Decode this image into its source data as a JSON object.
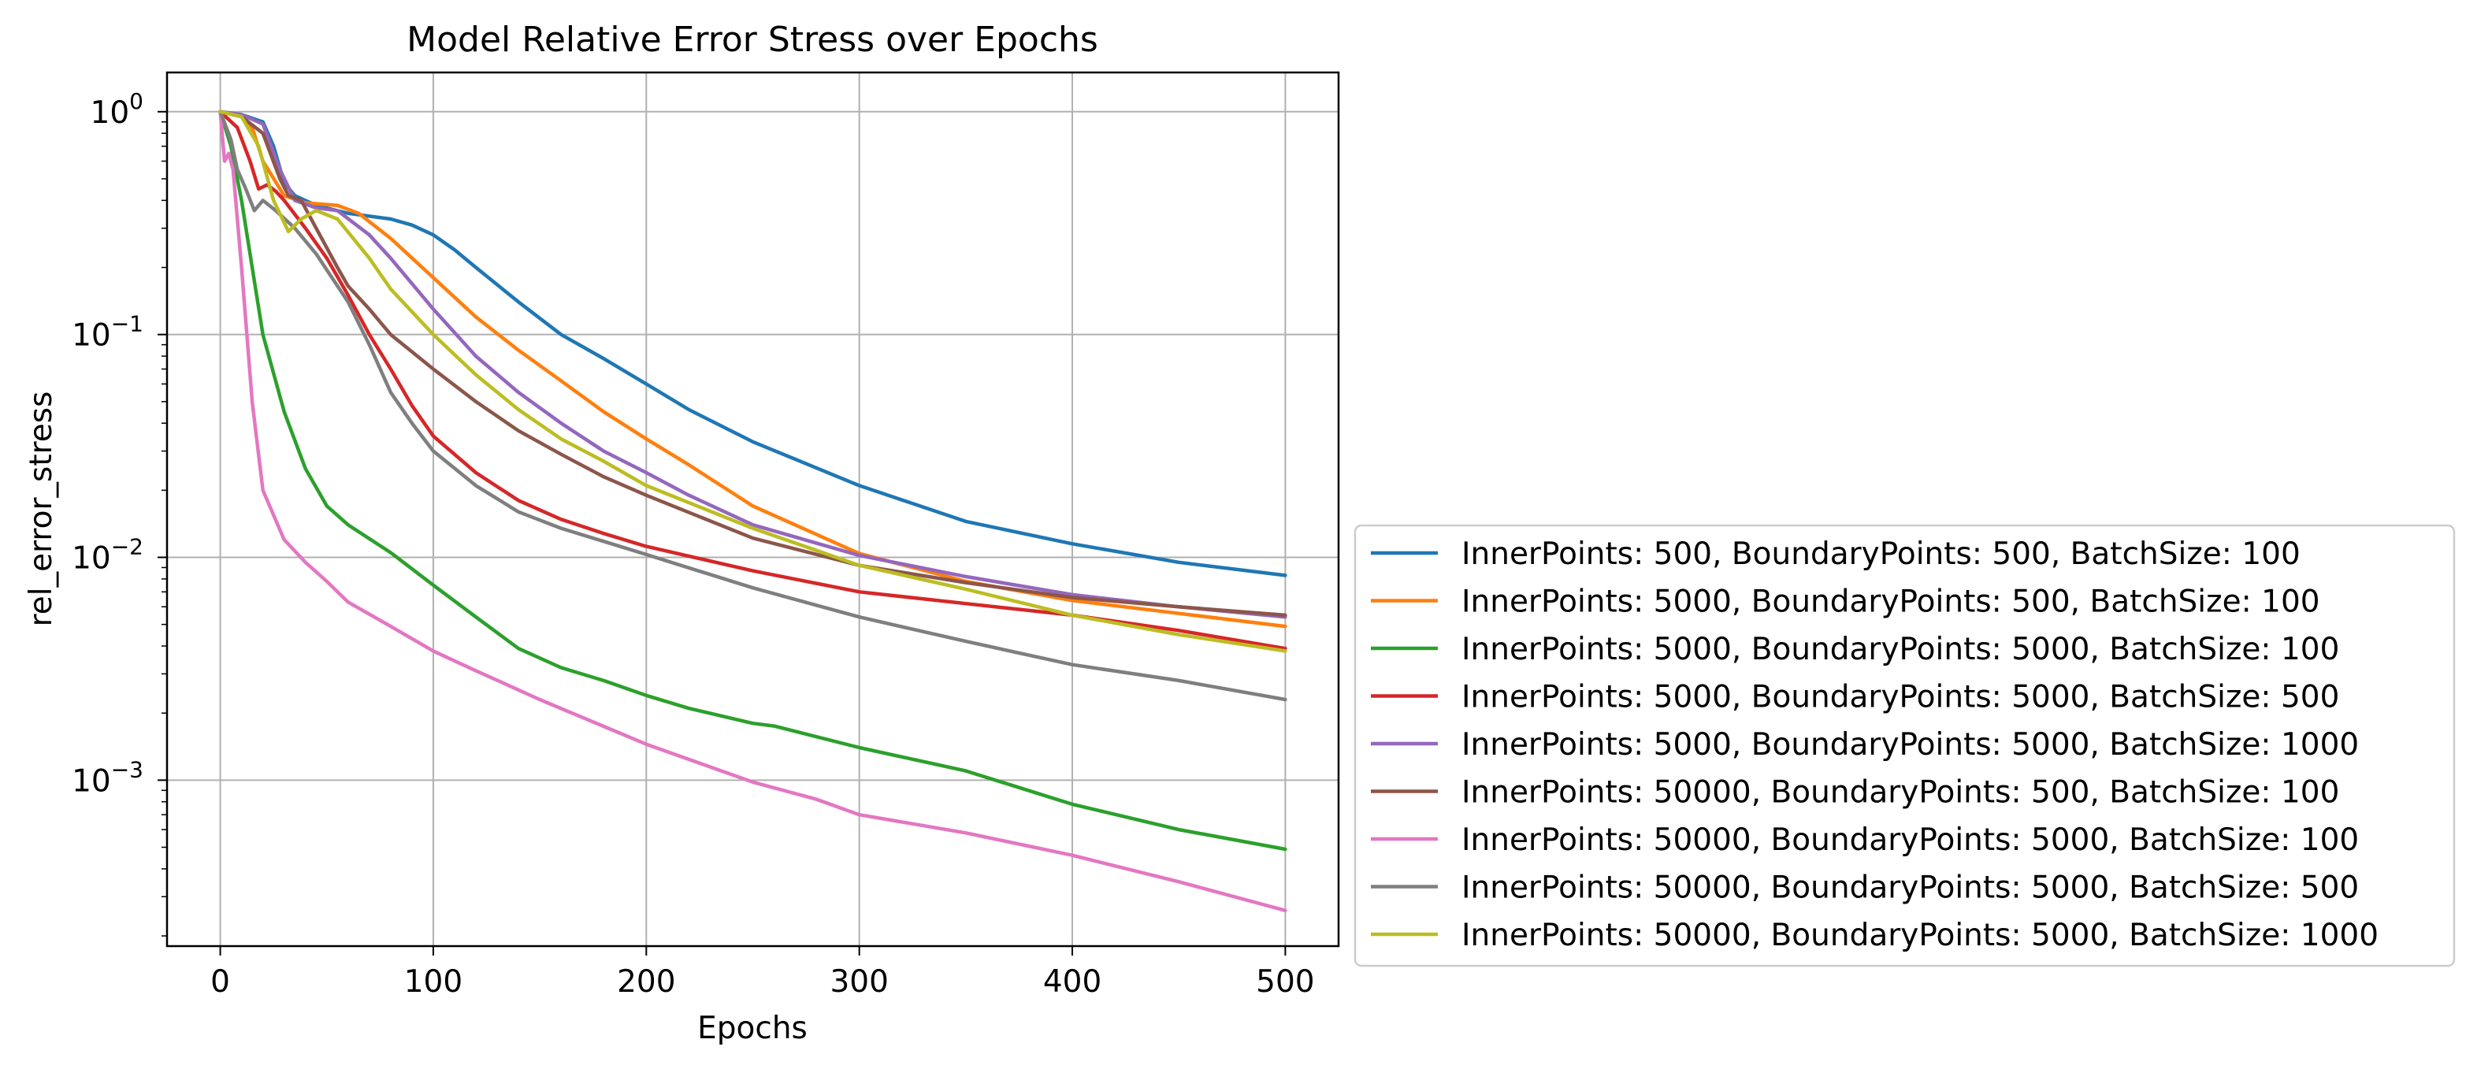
{
  "chart_data": {
    "type": "line",
    "title": "Model Relative Error Stress over Epochs",
    "xlabel": "Epochs",
    "ylabel": "rel_error_stress",
    "xlim": [
      -25,
      525
    ],
    "ylim": [
      0.00018,
      1.5
    ],
    "yscale": "log",
    "grid": true,
    "legend_position": "outside-right-bottom",
    "x_ticks": [
      {
        "value": 0,
        "label": "0"
      },
      {
        "value": 100,
        "label": "100"
      },
      {
        "value": 200,
        "label": "200"
      },
      {
        "value": 300,
        "label": "300"
      },
      {
        "value": 400,
        "label": "400"
      },
      {
        "value": 500,
        "label": "500"
      }
    ],
    "y_ticks": [
      {
        "value": 1,
        "base": "10",
        "exp": "0"
      },
      {
        "value": 0.1,
        "base": "10",
        "exp": "−1"
      },
      {
        "value": 0.01,
        "base": "10",
        "exp": "−2"
      },
      {
        "value": 0.001,
        "base": "10",
        "exp": "−3"
      }
    ],
    "series": [
      {
        "name": "InnerPoints: 500, BoundaryPoints: 500, BatchSize: 100",
        "color": "#1f77b4",
        "points": [
          [
            0,
            1.0
          ],
          [
            10,
            0.97
          ],
          [
            20,
            0.9
          ],
          [
            25,
            0.7
          ],
          [
            30,
            0.48
          ],
          [
            35,
            0.42
          ],
          [
            45,
            0.38
          ],
          [
            60,
            0.35
          ],
          [
            80,
            0.33
          ],
          [
            90,
            0.31
          ],
          [
            100,
            0.28
          ],
          [
            110,
            0.24
          ],
          [
            120,
            0.2
          ],
          [
            140,
            0.14
          ],
          [
            160,
            0.1
          ],
          [
            180,
            0.078
          ],
          [
            200,
            0.06
          ],
          [
            220,
            0.046
          ],
          [
            250,
            0.033
          ],
          [
            300,
            0.021
          ],
          [
            350,
            0.0145
          ],
          [
            400,
            0.0115
          ],
          [
            450,
            0.0095
          ],
          [
            500,
            0.0083
          ]
        ]
      },
      {
        "name": "InnerPoints: 5000, BoundaryPoints: 500, BatchSize: 100",
        "color": "#ff7f0e",
        "points": [
          [
            0,
            1.0
          ],
          [
            10,
            0.95
          ],
          [
            15,
            0.85
          ],
          [
            20,
            0.6
          ],
          [
            30,
            0.42
          ],
          [
            40,
            0.39
          ],
          [
            55,
            0.38
          ],
          [
            65,
            0.35
          ],
          [
            80,
            0.27
          ],
          [
            100,
            0.18
          ],
          [
            120,
            0.12
          ],
          [
            140,
            0.085
          ],
          [
            160,
            0.062
          ],
          [
            180,
            0.045
          ],
          [
            200,
            0.034
          ],
          [
            220,
            0.026
          ],
          [
            250,
            0.017
          ],
          [
            300,
            0.0104
          ],
          [
            350,
            0.0078
          ],
          [
            400,
            0.0064
          ],
          [
            450,
            0.0056
          ],
          [
            500,
            0.0049
          ]
        ]
      },
      {
        "name": "InnerPoints: 5000, BoundaryPoints: 5000, BatchSize: 100",
        "color": "#2ca02c",
        "points": [
          [
            0,
            1.0
          ],
          [
            5,
            0.7
          ],
          [
            10,
            0.4
          ],
          [
            15,
            0.2
          ],
          [
            20,
            0.1
          ],
          [
            30,
            0.045
          ],
          [
            40,
            0.025
          ],
          [
            50,
            0.017
          ],
          [
            60,
            0.014
          ],
          [
            80,
            0.0105
          ],
          [
            100,
            0.0075
          ],
          [
            120,
            0.0054
          ],
          [
            140,
            0.0039
          ],
          [
            160,
            0.0032
          ],
          [
            180,
            0.0028
          ],
          [
            200,
            0.0024
          ],
          [
            220,
            0.0021
          ],
          [
            250,
            0.0018
          ],
          [
            260,
            0.00175
          ],
          [
            300,
            0.0014
          ],
          [
            350,
            0.0011
          ],
          [
            400,
            0.00078
          ],
          [
            450,
            0.0006
          ],
          [
            500,
            0.00049
          ]
        ]
      },
      {
        "name": "InnerPoints: 5000, BoundaryPoints: 5000, BatchSize: 500",
        "color": "#d62728",
        "points": [
          [
            0,
            1.0
          ],
          [
            8,
            0.85
          ],
          [
            14,
            0.6
          ],
          [
            18,
            0.45
          ],
          [
            22,
            0.47
          ],
          [
            26,
            0.44
          ],
          [
            30,
            0.4
          ],
          [
            40,
            0.3
          ],
          [
            50,
            0.22
          ],
          [
            60,
            0.15
          ],
          [
            70,
            0.1
          ],
          [
            80,
            0.07
          ],
          [
            90,
            0.048
          ],
          [
            100,
            0.035
          ],
          [
            120,
            0.024
          ],
          [
            140,
            0.018
          ],
          [
            160,
            0.0148
          ],
          [
            180,
            0.0128
          ],
          [
            200,
            0.0112
          ],
          [
            250,
            0.0087
          ],
          [
            300,
            0.007
          ],
          [
            350,
            0.0062
          ],
          [
            400,
            0.0055
          ],
          [
            450,
            0.0047
          ],
          [
            500,
            0.0039
          ]
        ]
      },
      {
        "name": "InnerPoints: 5000, BoundaryPoints: 5000, BatchSize: 1000",
        "color": "#9467bd",
        "points": [
          [
            0,
            1.0
          ],
          [
            10,
            0.97
          ],
          [
            20,
            0.88
          ],
          [
            28,
            0.55
          ],
          [
            35,
            0.4
          ],
          [
            45,
            0.37
          ],
          [
            55,
            0.36
          ],
          [
            70,
            0.28
          ],
          [
            80,
            0.22
          ],
          [
            100,
            0.13
          ],
          [
            120,
            0.08
          ],
          [
            140,
            0.055
          ],
          [
            160,
            0.04
          ],
          [
            180,
            0.03
          ],
          [
            200,
            0.024
          ],
          [
            220,
            0.019
          ],
          [
            250,
            0.014
          ],
          [
            300,
            0.0102
          ],
          [
            350,
            0.0082
          ],
          [
            400,
            0.0068
          ],
          [
            450,
            0.006
          ],
          [
            500,
            0.0054
          ]
        ]
      },
      {
        "name": "InnerPoints: 50000, BoundaryPoints: 500, BatchSize: 100",
        "color": "#8c564b",
        "points": [
          [
            0,
            1.0
          ],
          [
            10,
            0.95
          ],
          [
            20,
            0.8
          ],
          [
            28,
            0.5
          ],
          [
            32,
            0.42
          ],
          [
            38,
            0.4
          ],
          [
            45,
            0.3
          ],
          [
            55,
            0.2
          ],
          [
            60,
            0.165
          ],
          [
            70,
            0.13
          ],
          [
            80,
            0.1
          ],
          [
            100,
            0.07
          ],
          [
            120,
            0.05
          ],
          [
            140,
            0.037
          ],
          [
            160,
            0.029
          ],
          [
            180,
            0.023
          ],
          [
            200,
            0.019
          ],
          [
            250,
            0.0122
          ],
          [
            300,
            0.0092
          ],
          [
            350,
            0.0077
          ],
          [
            400,
            0.0066
          ],
          [
            450,
            0.006
          ],
          [
            500,
            0.0055
          ]
        ]
      },
      {
        "name": "InnerPoints: 50000, BoundaryPoints: 5000, BatchSize: 100",
        "color": "#e377c2",
        "points": [
          [
            0,
            1.0
          ],
          [
            2,
            0.6
          ],
          [
            4,
            0.65
          ],
          [
            6,
            0.55
          ],
          [
            10,
            0.2
          ],
          [
            15,
            0.05
          ],
          [
            20,
            0.02
          ],
          [
            30,
            0.012
          ],
          [
            40,
            0.0095
          ],
          [
            50,
            0.0078
          ],
          [
            60,
            0.0063
          ],
          [
            80,
            0.0049
          ],
          [
            100,
            0.0038
          ],
          [
            120,
            0.0031
          ],
          [
            150,
            0.0023
          ],
          [
            200,
            0.00145
          ],
          [
            250,
            0.00098
          ],
          [
            280,
            0.00082
          ],
          [
            300,
            0.0007
          ],
          [
            350,
            0.00058
          ],
          [
            400,
            0.00046
          ],
          [
            450,
            0.00035
          ],
          [
            500,
            0.00026
          ]
        ]
      },
      {
        "name": "InnerPoints: 50000, BoundaryPoints: 5000, BatchSize: 500",
        "color": "#7f7f7f",
        "points": [
          [
            0,
            1.0
          ],
          [
            5,
            0.75
          ],
          [
            8,
            0.55
          ],
          [
            12,
            0.45
          ],
          [
            16,
            0.36
          ],
          [
            20,
            0.4
          ],
          [
            26,
            0.36
          ],
          [
            35,
            0.3
          ],
          [
            45,
            0.23
          ],
          [
            60,
            0.14
          ],
          [
            70,
            0.09
          ],
          [
            80,
            0.055
          ],
          [
            90,
            0.04
          ],
          [
            100,
            0.03
          ],
          [
            120,
            0.021
          ],
          [
            140,
            0.016
          ],
          [
            160,
            0.0135
          ],
          [
            180,
            0.0118
          ],
          [
            200,
            0.0103
          ],
          [
            250,
            0.0073
          ],
          [
            300,
            0.0054
          ],
          [
            350,
            0.0042
          ],
          [
            400,
            0.0033
          ],
          [
            450,
            0.0028
          ],
          [
            500,
            0.0023
          ]
        ]
      },
      {
        "name": "InnerPoints: 50000, BoundaryPoints: 5000, BatchSize: 1000",
        "color": "#bcbd22",
        "points": [
          [
            0,
            1.0
          ],
          [
            10,
            0.95
          ],
          [
            18,
            0.7
          ],
          [
            25,
            0.4
          ],
          [
            32,
            0.29
          ],
          [
            38,
            0.33
          ],
          [
            45,
            0.36
          ],
          [
            55,
            0.33
          ],
          [
            70,
            0.22
          ],
          [
            80,
            0.16
          ],
          [
            100,
            0.1
          ],
          [
            120,
            0.066
          ],
          [
            140,
            0.046
          ],
          [
            160,
            0.034
          ],
          [
            180,
            0.027
          ],
          [
            200,
            0.021
          ],
          [
            250,
            0.0135
          ],
          [
            300,
            0.0092
          ],
          [
            350,
            0.0072
          ],
          [
            400,
            0.0055
          ],
          [
            450,
            0.0045
          ],
          [
            500,
            0.0038
          ]
        ]
      }
    ]
  }
}
